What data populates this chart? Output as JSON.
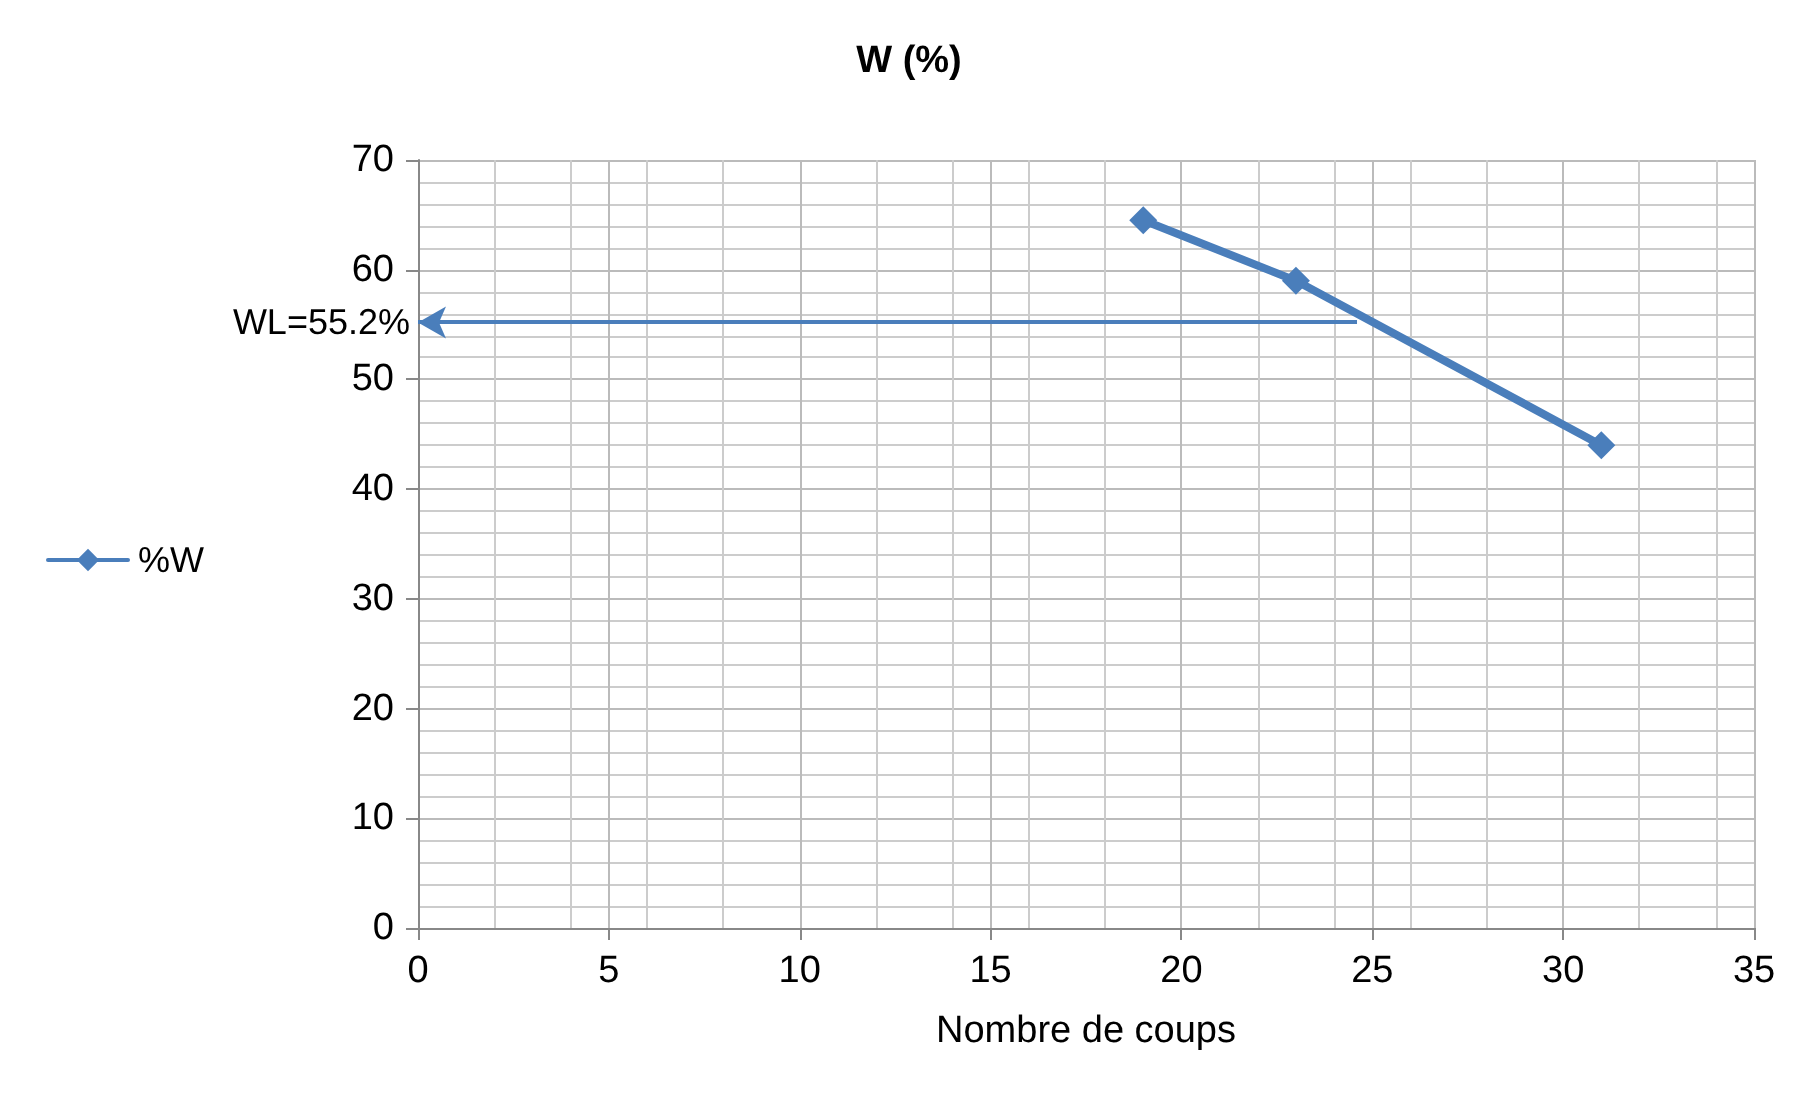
{
  "chart_data": {
    "type": "line",
    "title": "W (%)",
    "xlabel": "Nombre de coups",
    "x": [
      19,
      23,
      31
    ],
    "series": [
      {
        "name": "%W",
        "color": "#4a7ebb",
        "values": [
          64.5,
          59,
          44
        ]
      }
    ],
    "xlim": [
      0,
      35
    ],
    "xticks": [
      0,
      5,
      10,
      15,
      20,
      25,
      30,
      35
    ],
    "ylim": [
      0,
      70
    ],
    "yticks": [
      0,
      10,
      20,
      30,
      40,
      50,
      60,
      70
    ],
    "annotations": [
      {
        "text": "WL=55.2%",
        "x": 24.6,
        "y": 55.2
      }
    ],
    "grid": true,
    "legend": "left",
    "marker": "diamond",
    "line_style": "solid"
  }
}
